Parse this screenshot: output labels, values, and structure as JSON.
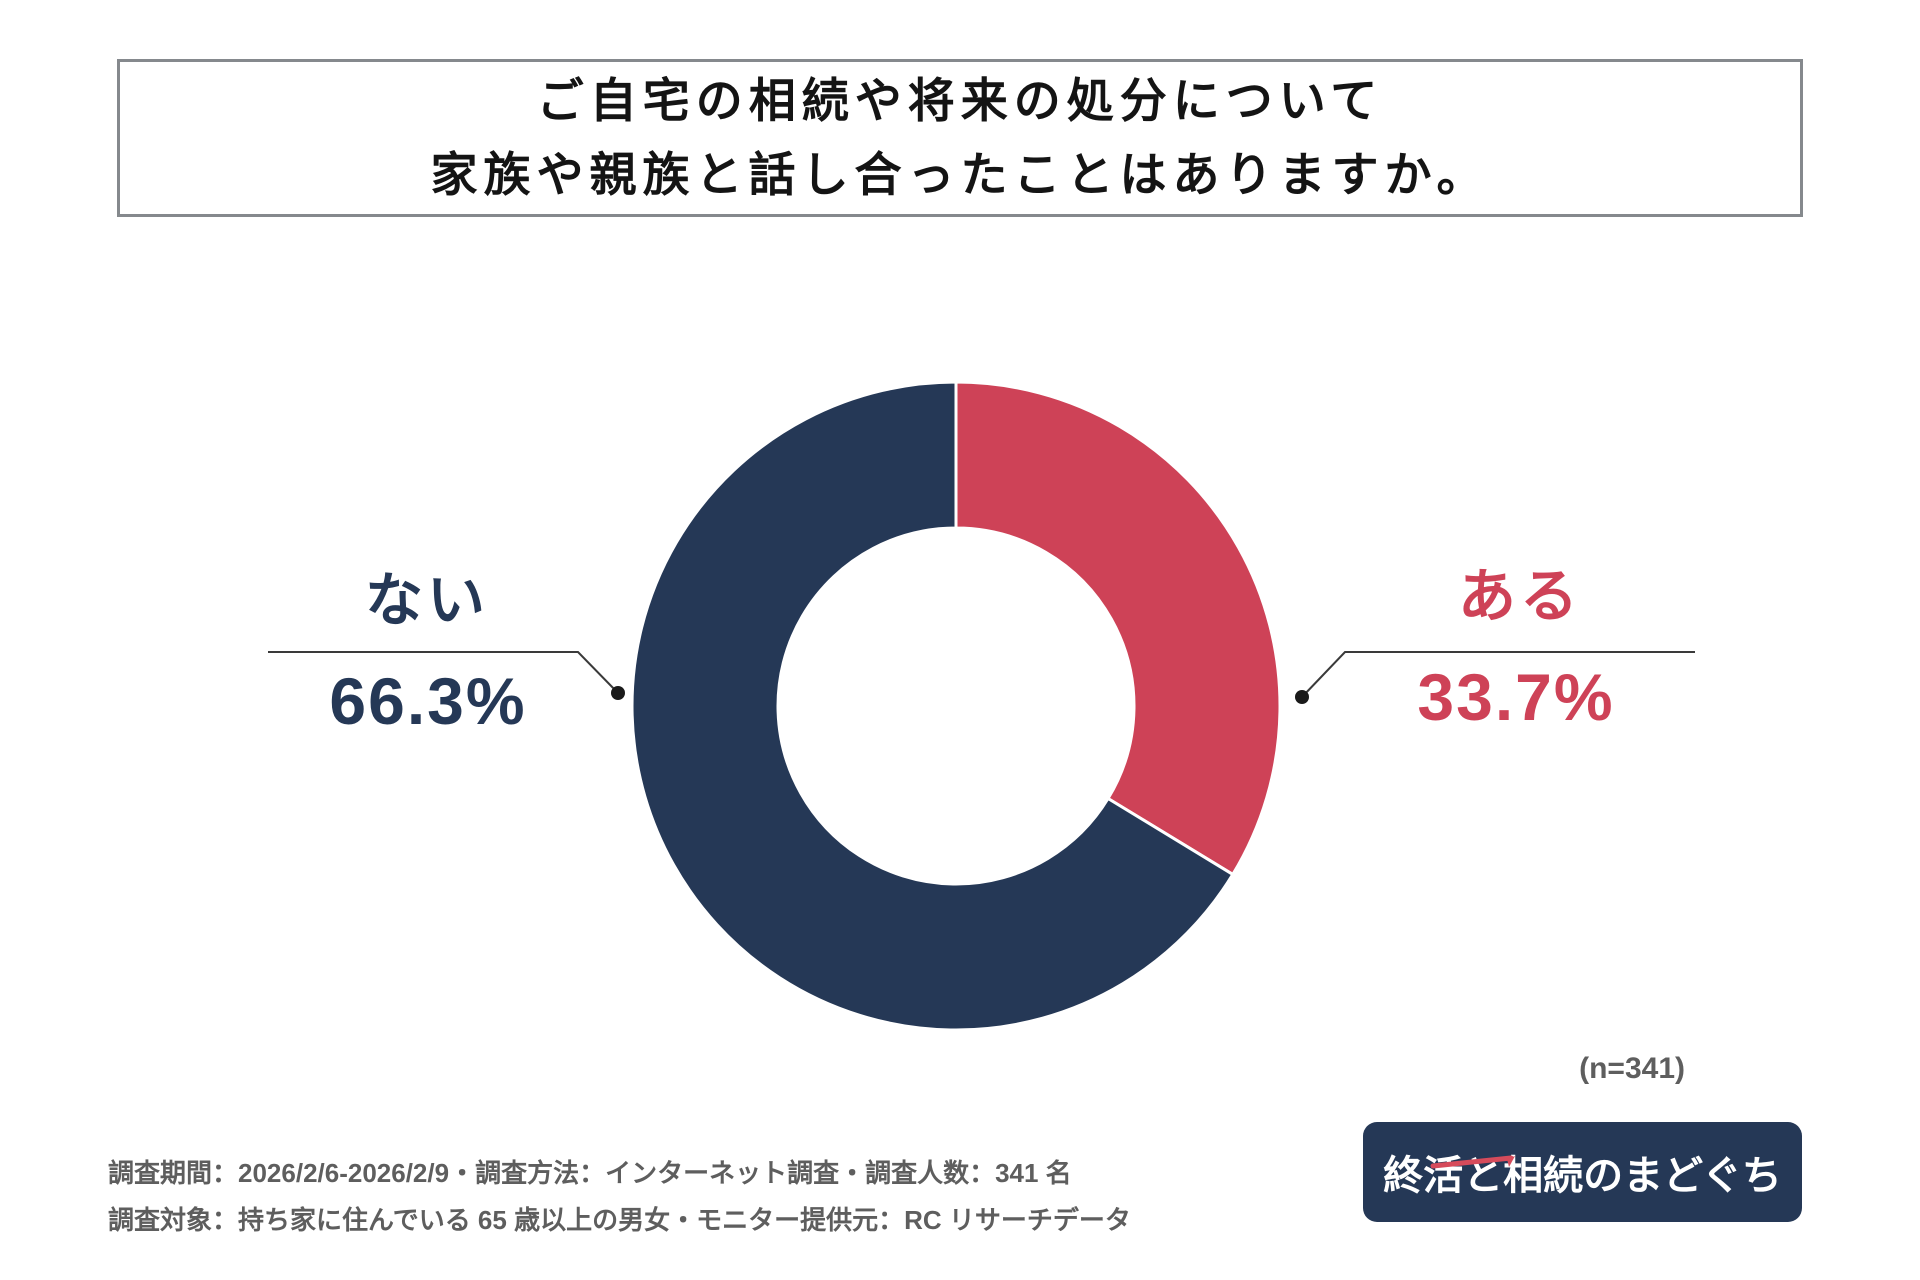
{
  "title_box": {
    "line1": "ご自宅の相続や将来の処分について",
    "line2": "家族や親族と話し合ったことはありますか。"
  },
  "chart_data": {
    "type": "pie",
    "subtype": "donut",
    "title": "ご自宅の相続や将来の処分について家族や親族と話し合ったことはありますか。",
    "categories": [
      "ある",
      "ない"
    ],
    "values": [
      33.7,
      66.3
    ],
    "unit": "%",
    "colors": [
      "#CE4257",
      "#253856"
    ],
    "start_angle_deg": 0,
    "direction": "clockwise",
    "legend_position": "none",
    "sample_note": "(n=341)"
  },
  "callouts": {
    "left": {
      "label": "ない",
      "value": "66.3%",
      "color": "#253856"
    },
    "right": {
      "label": "ある",
      "value": "33.7%",
      "color": "#CE4257"
    }
  },
  "sample_note": "(n=341)",
  "footer": {
    "line1": "調査期間：2026/2/6-2026/2/9・調査方法：インターネット調査・調査人数：341 名",
    "line2": "調査対象：持ち家に住んでいる 65 歳以上の男女・モニター提供元：RC リサーチデータ"
  },
  "logo": {
    "text": "終活と相続のまどぐち",
    "background": "#253856",
    "accent_color": "#D64B5B"
  }
}
